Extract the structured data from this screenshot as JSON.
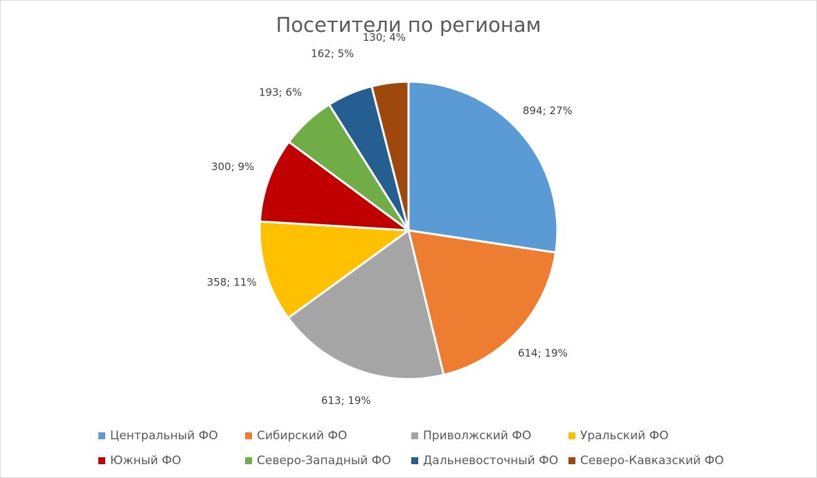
{
  "chart_data": {
    "type": "pie",
    "title": "Посетители по регионам",
    "categories": [
      "Центральный ФО",
      "Сибирский ФО",
      "Приволжский ФО",
      "Уральский ФО",
      "Южный ФО",
      "Северо-Западный ФО",
      "Дальневосточный ФО",
      "Северо-Кавказский ФО"
    ],
    "values": [
      894,
      614,
      613,
      358,
      300,
      193,
      162,
      130
    ],
    "percent_labels": [
      "27%",
      "19%",
      "19%",
      "11%",
      "9%",
      "6%",
      "5%",
      "4%"
    ],
    "data_labels": [
      "894; 27%",
      "614; 19%",
      "613; 19%",
      "358; 11%",
      "300; 9%",
      "193; 6%",
      "162; 5%",
      "130; 4%"
    ],
    "colors": [
      "#5b9bd5",
      "#ed7d31",
      "#a5a5a5",
      "#ffc000",
      "#c00000",
      "#70ad47",
      "#255e91",
      "#9e480e"
    ],
    "legend_position": "bottom"
  }
}
